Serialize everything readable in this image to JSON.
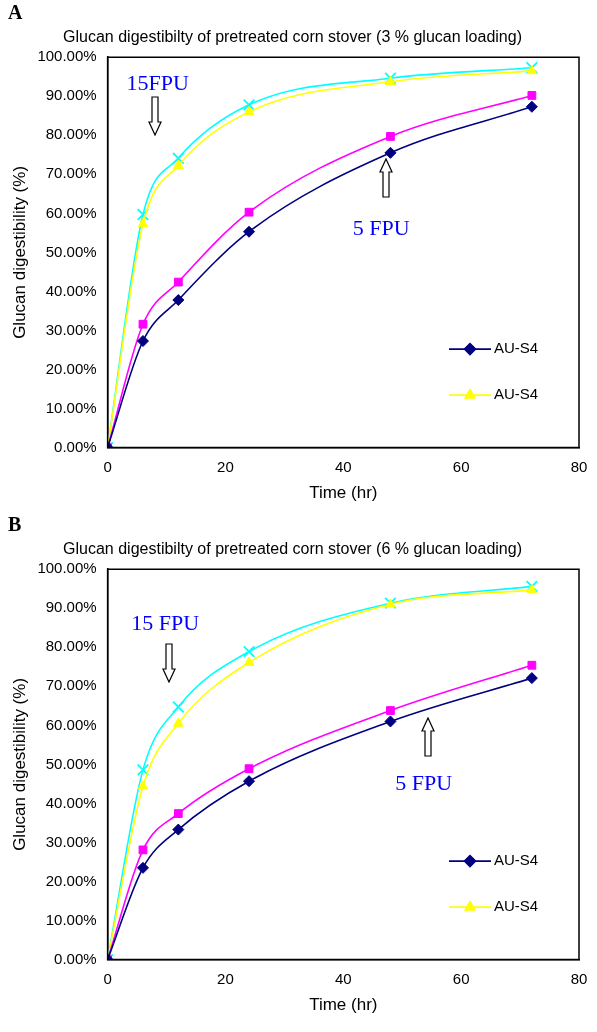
{
  "chart_data": [
    {
      "type": "line",
      "title": "Glucan digestibilty of pretreated corn stover (3 % glucan loading)",
      "xlabel": "Time (hr)",
      "ylabel": "Glucan digestibility (%)",
      "annotations": [
        "A",
        "15FPU",
        "5 FPU"
      ],
      "x": [
        0,
        6,
        12,
        24,
        48,
        72
      ],
      "series": [
        {
          "name": "AU-S4",
          "color": "#000080",
          "marker": "diamond",
          "values": [
            0,
            27.3,
            37.8,
            55.3,
            75.5,
            87.3
          ]
        },
        {
          "color": "#ff00ff",
          "marker": "square",
          "values": [
            0,
            31.6,
            42.4,
            60.3,
            79.7,
            90.2
          ]
        },
        {
          "name": "AU-S4",
          "color": "#ffff00",
          "marker": "triangle",
          "values": [
            0,
            57.3,
            72.2,
            86,
            93.7,
            96.5
          ]
        },
        {
          "color": "#00ffff",
          "marker": "cross",
          "values": [
            0,
            59.7,
            74.1,
            87.8,
            94.6,
            97.3
          ]
        }
      ],
      "xlim": [
        0,
        80
      ],
      "xticks": [
        0,
        20,
        40,
        60,
        80
      ],
      "ylim": [
        0,
        100
      ],
      "yticks": [
        {
          "value": 0,
          "label": "0.00%"
        },
        {
          "value": 10,
          "label": "10.00%"
        },
        {
          "value": 20,
          "label": "20.00%"
        },
        {
          "value": 30,
          "label": "30.00%"
        },
        {
          "value": 40,
          "label": "40.00%"
        },
        {
          "value": 50,
          "label": "50.00%"
        },
        {
          "value": 60,
          "label": "60.00%"
        },
        {
          "value": 70,
          "label": "70.00%"
        },
        {
          "value": 80,
          "label": "80.00%"
        },
        {
          "value": 90,
          "label": "90.00%"
        },
        {
          "value": 100,
          "label": "100.00%"
        }
      ],
      "legend": "bottom right",
      "line_style": "solid"
    },
    {
      "type": "line",
      "title": "Glucan digestibilty of pretreated corn stover (6 % glucan loading)",
      "xlabel": "Time (hr)",
      "ylabel": "Glucan digestibility (%)",
      "annotations": [
        "B",
        "15 FPU",
        "5 FPU"
      ],
      "x": [
        0,
        6,
        12,
        24,
        48,
        72
      ],
      "series": [
        {
          "name": "AU-S4",
          "color": "#000080",
          "marker": "diamond",
          "values": [
            0,
            23.5,
            33.3,
            45.7,
            61,
            72.1
          ]
        },
        {
          "color": "#ff00ff",
          "marker": "square",
          "values": [
            0,
            28.1,
            37.4,
            48.9,
            63.8,
            75.4
          ]
        },
        {
          "name": "AU-S4",
          "color": "#ffff00",
          "marker": "triangle",
          "values": [
            0,
            44.4,
            60.5,
            76.1,
            91,
            94.7
          ]
        },
        {
          "color": "#00ffff",
          "marker": "cross",
          "values": [
            0,
            48.6,
            64.7,
            78.9,
            91.3,
            95.6
          ]
        }
      ],
      "xlim": [
        0,
        80
      ],
      "xticks": [
        0,
        20,
        40,
        60,
        80
      ],
      "ylim": [
        0,
        100
      ],
      "yticks": [
        {
          "value": 0,
          "label": "0.00%"
        },
        {
          "value": 10,
          "label": "10.00%"
        },
        {
          "value": 20,
          "label": "20.00%"
        },
        {
          "value": 30,
          "label": "30.00%"
        },
        {
          "value": 40,
          "label": "40.00%"
        },
        {
          "value": 50,
          "label": "50.00%"
        },
        {
          "value": 60,
          "label": "60.00%"
        },
        {
          "value": 70,
          "label": "70.00%"
        },
        {
          "value": 80,
          "label": "80.00%"
        },
        {
          "value": 90,
          "label": "90.00%"
        },
        {
          "value": 100,
          "label": "100.00%"
        }
      ],
      "legend": "bottom right",
      "line_style": "solid"
    }
  ]
}
